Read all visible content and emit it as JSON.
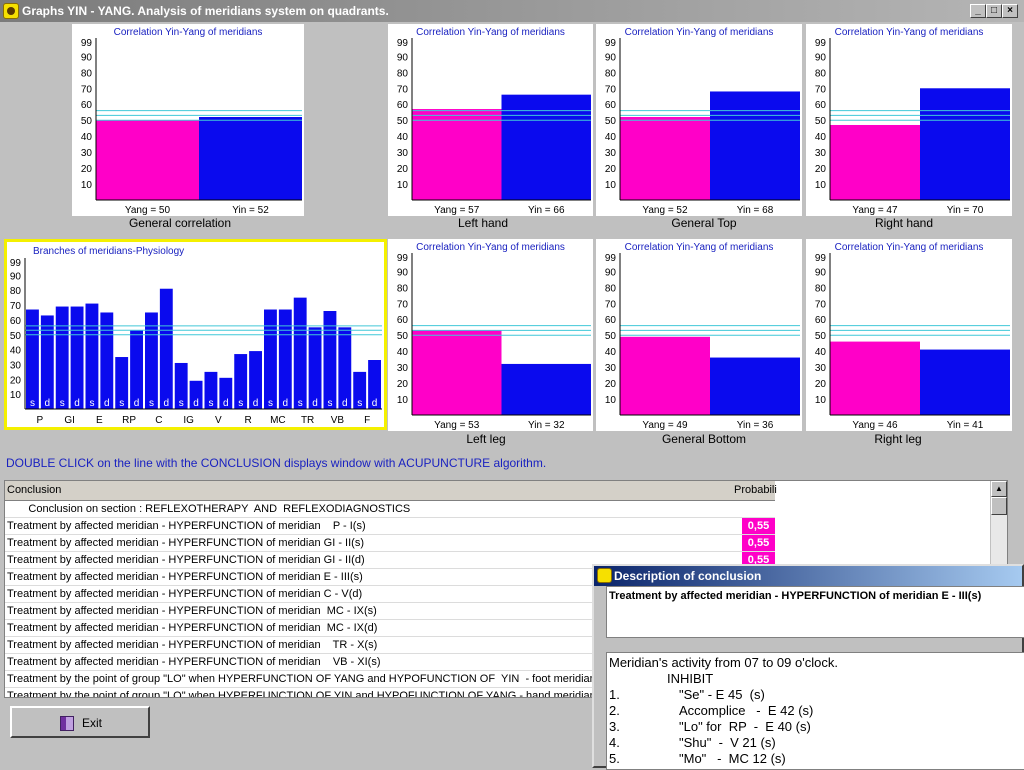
{
  "window": {
    "title": "Graphs YIN - YANG.  Analysis of meridians system on quadrants.",
    "buttons": [
      "_",
      "□",
      "×"
    ]
  },
  "colors": {
    "yang": "#ff00c8",
    "yin": "#0a0aee",
    "reference_line": "#40c8d8"
  },
  "charts": [
    {
      "id": "general-correlation",
      "title": "Correlation Yin-Yang of meridians",
      "caption": "General correlation",
      "yang": 50,
      "yin": 52,
      "yang_label": "Yang = 50",
      "yin_label": "Yin = 52"
    },
    {
      "id": "left-hand",
      "title": "Correlation Yin-Yang of meridians",
      "caption": "Left hand",
      "yang": 57,
      "yin": 66,
      "yang_label": "Yang = 57",
      "yin_label": "Yin = 66"
    },
    {
      "id": "general-top",
      "title": "Correlation Yin-Yang of meridians",
      "caption": "General Top",
      "yang": 52,
      "yin": 68,
      "yang_label": "Yang = 52",
      "yin_label": "Yin = 68"
    },
    {
      "id": "right-hand",
      "title": "Correlation Yin-Yang of meridians",
      "caption": "Right hand",
      "yang": 47,
      "yin": 70,
      "yang_label": "Yang = 47",
      "yin_label": "Yin = 70"
    },
    {
      "id": "left-leg",
      "title": "Correlation Yin-Yang of meridians",
      "caption": "Left leg",
      "yang": 53,
      "yin": 32,
      "yang_label": "Yang = 53",
      "yin_label": "Yin = 32"
    },
    {
      "id": "general-bottom",
      "title": "Correlation Yin-Yang of meridians",
      "caption": "General Bottom",
      "yang": 49,
      "yin": 36,
      "yang_label": "Yang = 49",
      "yin_label": "Yin = 36"
    },
    {
      "id": "right-leg",
      "title": "Correlation Yin-Yang of meridians",
      "caption": "Right leg",
      "yang": 46,
      "yin": 41,
      "yang_label": "Yang = 46",
      "yin_label": "Yin = 41"
    }
  ],
  "y_ticks": [
    "10",
    "20",
    "30",
    "40",
    "50",
    "60",
    "70",
    "80",
    "90",
    "99"
  ],
  "branches": {
    "title": "Branches of meridians-Physiology",
    "bars": [
      {
        "tag": "s",
        "value": 67
      },
      {
        "tag": "d",
        "value": 63
      },
      {
        "tag": "s",
        "value": 69
      },
      {
        "tag": "d",
        "value": 69
      },
      {
        "tag": "s",
        "value": 71
      },
      {
        "tag": "d",
        "value": 65
      },
      {
        "tag": "s",
        "value": 35
      },
      {
        "tag": "d",
        "value": 53
      },
      {
        "tag": "s",
        "value": 65
      },
      {
        "tag": "d",
        "value": 81
      },
      {
        "tag": "s",
        "value": 31
      },
      {
        "tag": "d",
        "value": 19
      },
      {
        "tag": "s",
        "value": 25
      },
      {
        "tag": "d",
        "value": 21
      },
      {
        "tag": "s",
        "value": 37
      },
      {
        "tag": "d",
        "value": 39
      },
      {
        "tag": "s",
        "value": 67
      },
      {
        "tag": "d",
        "value": 67
      },
      {
        "tag": "s",
        "value": 75
      },
      {
        "tag": "d",
        "value": 55
      },
      {
        "tag": "s",
        "value": 66
      },
      {
        "tag": "d",
        "value": 55
      },
      {
        "tag": "s",
        "value": 25
      },
      {
        "tag": "d",
        "value": 33
      }
    ],
    "groups": [
      "P",
      "GI",
      "E",
      "RP",
      "C",
      "IG",
      "V",
      "R",
      "MC",
      "TR",
      "VB",
      "F"
    ]
  },
  "hint": "DOUBLE CLICK on the line with the CONCLUSION displays window with ACUPUNCTURE algorithm.",
  "table": {
    "headers": {
      "conclusion": "Conclusion",
      "probability": "Probabili"
    },
    "rows": [
      {
        "text": "       Conclusion on section : REFLEXOTHERAPY  AND  REFLEXODIAGNOSTICS",
        "prob": ""
      },
      {
        "text": "Treatment by affected meridian - HYPERFUNCTION of meridian    P - I(s)",
        "prob": "0,55"
      },
      {
        "text": "Treatment by affected meridian - HYPERFUNCTION of meridian GI - II(s)",
        "prob": "0,55"
      },
      {
        "text": "Treatment by affected meridian - HYPERFUNCTION of meridian GI - II(d)",
        "prob": "0,55"
      },
      {
        "text": "Treatment by affected meridian - HYPERFUNCTION of meridian E - III(s)",
        "prob": ""
      },
      {
        "text": "Treatment by affected meridian - HYPERFUNCTION of meridian C - V(d)",
        "prob": ""
      },
      {
        "text": "Treatment by affected meridian - HYPERFUNCTION of meridian  MC - IX(s)",
        "prob": ""
      },
      {
        "text": "Treatment by affected meridian - HYPERFUNCTION of meridian  MC - IX(d)",
        "prob": ""
      },
      {
        "text": "Treatment by affected meridian - HYPERFUNCTION of meridian    TR - X(s)",
        "prob": ""
      },
      {
        "text": "Treatment by affected meridian - HYPERFUNCTION of meridian    VB - XI(s)",
        "prob": ""
      },
      {
        "text": "Treatment by the point of group \"LO\" when HYPERFUNCTION OF YANG and HYPOFUNCTION OF  YIN  - foot meridians.",
        "prob": ""
      },
      {
        "text": "Treatment by the point of group \"LO\" when HYPERFUNCTION OF YIN and HYPOFUNCTION OF YANG - hand meridians.",
        "prob": ""
      }
    ]
  },
  "exit_button": {
    "label": "Exit"
  },
  "dialog": {
    "title": "Description of conclusion",
    "conclusion": "Treatment by affected meridian - HYPERFUNCTION of meridian E - III(s)",
    "activity": "Meridian's activity from 07 to 09 o'clock.",
    "inhibit": "INHIBIT",
    "items": [
      {
        "num": "1.",
        "text": "\"Se\" - E 45  (s)"
      },
      {
        "num": "2.",
        "text": "Accomplice   -  E 42 (s)"
      },
      {
        "num": "3.",
        "text": "\"Lo\" for  RP  -  E 40 (s)"
      },
      {
        "num": "4.",
        "text": "\"Shu\"  -  V 21 (s)"
      },
      {
        "num": "5.",
        "text": "\"Mo\"   -  MC 12 (s)"
      }
    ]
  }
}
